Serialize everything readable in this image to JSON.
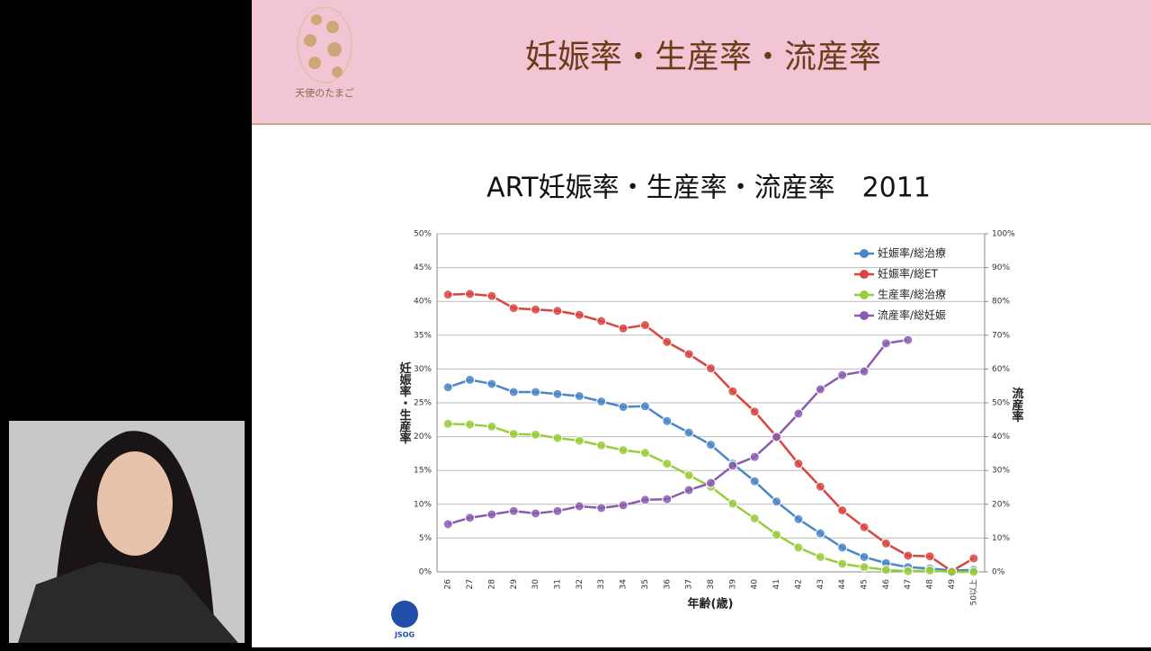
{
  "slide": {
    "header_title": "妊娠率・生産率・流産率",
    "logo_text": "天使のたまご",
    "footer_logo": "JSOG"
  },
  "chart_data": {
    "type": "line",
    "title": "ART妊娠率・生産率・流産率　2011",
    "x_label": "年齢(歳)",
    "y_label": "妊娠率・生産率",
    "y2_label": "流産率",
    "categories": [
      "26",
      "27",
      "28",
      "29",
      "30",
      "31",
      "32",
      "33",
      "34",
      "35",
      "36",
      "37",
      "38",
      "39",
      "40",
      "41",
      "42",
      "43",
      "44",
      "45",
      "46",
      "47",
      "48",
      "49",
      "50以上"
    ],
    "series": [
      {
        "name": "妊娠率/総治療",
        "color": "#4a86c8",
        "values": [
          27.3,
          28.4,
          27.8,
          26.6,
          26.6,
          26.3,
          26.0,
          25.2,
          24.4,
          24.5,
          22.3,
          20.6,
          18.8,
          16.0,
          13.4,
          10.4,
          7.8,
          5.7,
          3.6,
          2.2,
          1.3,
          0.7,
          0.5,
          0.2,
          0.3
        ]
      },
      {
        "name": "妊娠率/総ET",
        "color": "#d9453f",
        "values": [
          41.0,
          41.1,
          40.8,
          39.0,
          38.8,
          38.6,
          38.0,
          37.1,
          36.0,
          36.5,
          34.0,
          32.2,
          30.1,
          26.7,
          23.7,
          20.0,
          16.0,
          12.6,
          9.1,
          6.6,
          4.2,
          2.4,
          2.3,
          0.1,
          2.0
        ]
      },
      {
        "name": "生産率/総治療",
        "color": "#9acd3c",
        "values": [
          21.9,
          21.8,
          21.5,
          20.4,
          20.3,
          19.8,
          19.4,
          18.7,
          18.0,
          17.6,
          16.0,
          14.3,
          12.6,
          10.1,
          7.9,
          5.5,
          3.6,
          2.2,
          1.2,
          0.7,
          0.3,
          0.1,
          0.2,
          0.0,
          0.0
        ]
      },
      {
        "name": "流産率/総妊娠",
        "color": "#8a5cb0",
        "axis": "y2",
        "values": [
          14.1,
          16.0,
          17.0,
          18.0,
          17.3,
          18.0,
          19.4,
          18.9,
          19.7,
          21.3,
          21.5,
          24.2,
          26.3,
          31.4,
          34.0,
          39.9,
          46.8,
          54.0,
          58.2,
          59.3,
          67.6,
          68.6,
          null,
          null,
          null
        ]
      }
    ],
    "ylim": [
      0,
      50
    ],
    "yticks": [
      {
        "value": 0,
        "label": "0%"
      },
      {
        "value": 5,
        "label": "5%"
      },
      {
        "value": 10,
        "label": "10%"
      },
      {
        "value": 15,
        "label": "15%"
      },
      {
        "value": 20,
        "label": "20%"
      },
      {
        "value": 25,
        "label": "25%"
      },
      {
        "value": 30,
        "label": "30%"
      },
      {
        "value": 35,
        "label": "35%"
      },
      {
        "value": 40,
        "label": "40%"
      },
      {
        "value": 45,
        "label": "45%"
      },
      {
        "value": 50,
        "label": "50%"
      }
    ],
    "y2lim": [
      0,
      100
    ],
    "y2ticks": [
      {
        "value": 0,
        "label": "0%"
      },
      {
        "value": 10,
        "label": "10%"
      },
      {
        "value": 20,
        "label": "20%"
      },
      {
        "value": 30,
        "label": "30%"
      },
      {
        "value": 40,
        "label": "40%"
      },
      {
        "value": 50,
        "label": "50%"
      },
      {
        "value": 60,
        "label": "60%"
      },
      {
        "value": 70,
        "label": "70%"
      },
      {
        "value": 80,
        "label": "80%"
      },
      {
        "value": 90,
        "label": "90%"
      },
      {
        "value": 100,
        "label": "100%"
      }
    ],
    "grid": true,
    "legend": "upper right"
  }
}
